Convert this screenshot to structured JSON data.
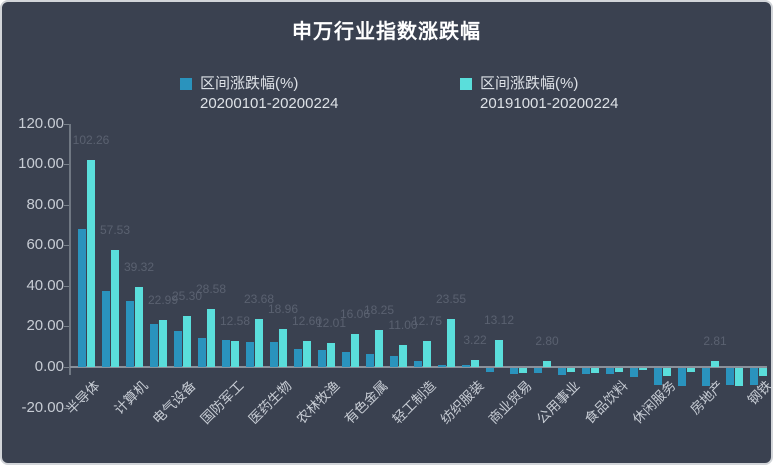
{
  "title": "申万行业指数涨跌幅",
  "colors": {
    "background": "#3a4150",
    "series1": "#2a93bd",
    "series2": "#5adedb",
    "axis_line": "#8a919b",
    "axis_text": "#c7ccd4",
    "value_label_text": "#5a6170",
    "title_text": "#ffffff"
  },
  "legend": [
    {
      "swatch_color": "#2a93bd",
      "line1": "区间涨跌幅(%)",
      "line2": "20200101-20200224"
    },
    {
      "swatch_color": "#5adedb",
      "line1": "区间涨跌幅(%)",
      "line2": "20191001-20200224"
    }
  ],
  "chart_data": {
    "type": "bar",
    "title": "申万行业指数涨跌幅",
    "ylim": [
      -20,
      120
    ],
    "ytick_step": 20,
    "ytick_labels": [
      "120.00",
      "100.00",
      "80.00",
      "60.00",
      "40.00",
      "20.00",
      "0.00",
      "-20.00"
    ],
    "grid": false,
    "legend_position": "top-center",
    "x_axis_label_interval": "every other bar group is labeled; unlabeled groups shown as empty strings",
    "categories": [
      "半导体",
      "",
      "计算机",
      "",
      "电气设备",
      "",
      "国防军工",
      "",
      "医药生物",
      "",
      "农林牧渔",
      "",
      "有色金属",
      "",
      "轻工制造",
      "",
      "纺织服装",
      "",
      "商业贸易",
      "",
      "公用事业",
      "",
      "食品饮料",
      "",
      "休闲服务",
      "",
      "房地产",
      "",
      "钢铁"
    ],
    "series": [
      {
        "name": "区间涨跌幅(%) 20200101-20200224",
        "color": "#2a93bd",
        "values": [
          68.0,
          37.5,
          32.3,
          21.3,
          17.5,
          14.3,
          13.4,
          12.1,
          12.1,
          8.9,
          8.5,
          7.2,
          6.6,
          5.2,
          2.8,
          1.2,
          1.0,
          -2.0,
          -3.1,
          -2.6,
          -3.6,
          -2.9,
          -3.1,
          -4.6,
          -8.2,
          -8.7,
          -8.7,
          -8.2,
          -8.5
        ]
      },
      {
        "name": "区间涨跌幅(%) 20191001-20200224",
        "color": "#5adedb",
        "values": [
          102.26,
          57.53,
          39.32,
          22.99,
          25.3,
          28.58,
          12.58,
          23.68,
          18.96,
          12.6,
          12.01,
          16.06,
          18.25,
          11.0,
          12.75,
          23.55,
          3.22,
          13.12,
          -2.6,
          2.8,
          -2.1,
          -2.5,
          -1.8,
          -0.8,
          -4.1,
          -2.1,
          2.81,
          -8.7,
          -4.0
        ],
        "data_labels": [
          "102.26",
          "57.53",
          "39.32",
          "22.99",
          "25.30",
          "28.58",
          "12.58",
          "23.68",
          "18.96",
          "12.60",
          "12.01",
          "16.06",
          "18.25",
          "11.00",
          "12.75",
          "23.55",
          "3.22",
          "13.12",
          null,
          "2.80",
          null,
          null,
          null,
          null,
          null,
          null,
          "2.81",
          null,
          null
        ]
      }
    ]
  }
}
